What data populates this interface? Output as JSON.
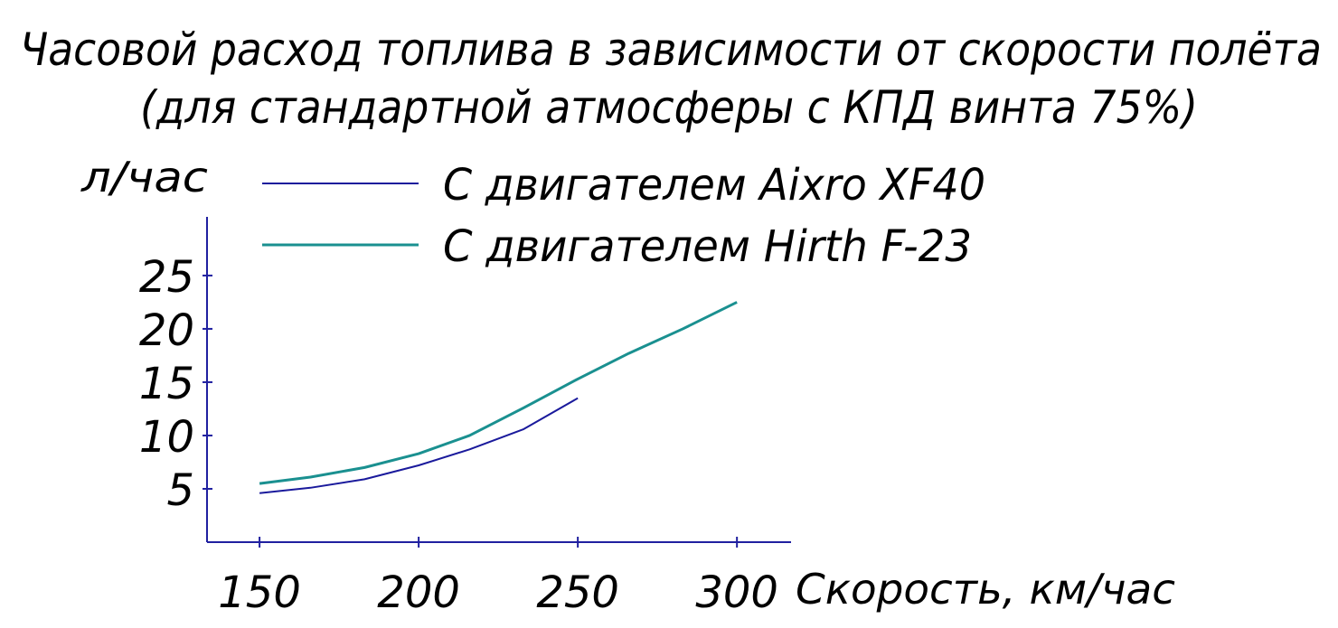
{
  "chart_data": {
    "type": "line",
    "title": "Часовой расход топлива в зависимости от скорости полёта",
    "subtitle": "(для стандартной атмосферы с КПД винта 75%)",
    "y_label": "л/час",
    "x_label": "Скорость, км/час",
    "x": [
      150,
      166,
      183,
      200,
      216,
      233,
      250,
      266,
      283,
      300
    ],
    "series": [
      {
        "name": "С двигателем Aixro XF40",
        "color": "#1a1a9c",
        "values": [
          4.6,
          5.1,
          5.9,
          7.2,
          8.7,
          10.6,
          13.5,
          null,
          null,
          null
        ]
      },
      {
        "name": "С двигателем Hirth F-23",
        "color": "#1a9090",
        "values": [
          5.5,
          6.1,
          7.0,
          8.3,
          10.0,
          12.6,
          15.3,
          17.7,
          20.0,
          22.5
        ]
      }
    ],
    "xlim": [
      133.5,
      317
    ],
    "xticks": [
      150,
      200,
      250,
      300
    ],
    "ylim": [
      0,
      30.5
    ],
    "yticks": [
      5,
      10,
      15,
      20,
      25
    ],
    "grid": false
  }
}
